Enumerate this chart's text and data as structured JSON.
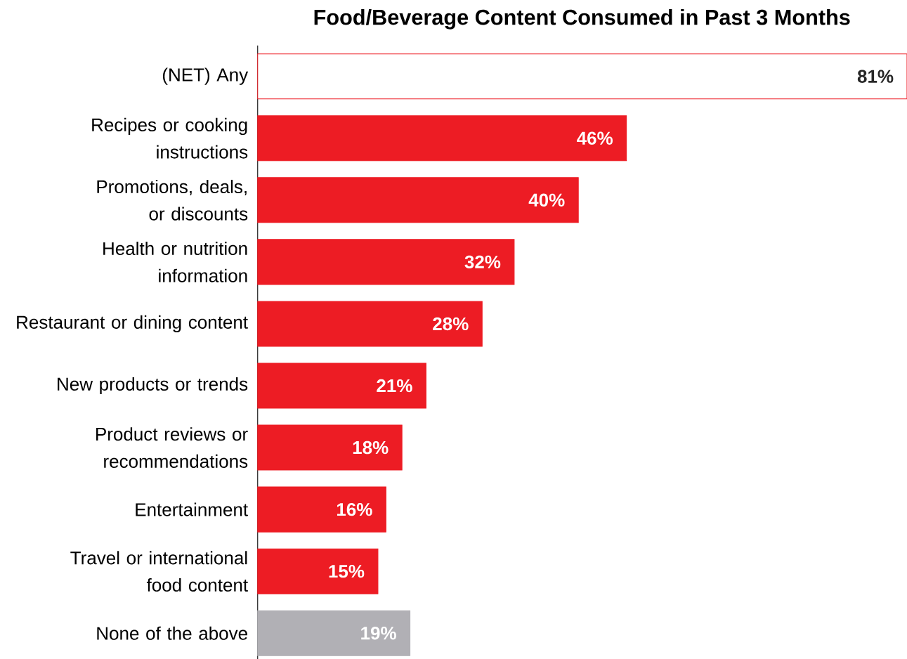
{
  "chart_data": {
    "type": "bar",
    "orientation": "horizontal",
    "title": "Food/Beverage Content Consumed in Past 3 Months",
    "categories": [
      "(NET) Any",
      "Recipes or cooking instructions",
      "Promotions, deals, or discounts",
      "Health or nutrition information",
      "Restaurant or dining content",
      "New products or trends",
      "Product reviews or recommendations",
      "Entertainment",
      "Travel or international food content",
      "None of the above"
    ],
    "values": [
      81,
      46,
      40,
      32,
      28,
      21,
      18,
      16,
      15,
      19
    ],
    "value_labels": [
      "81%",
      "46%",
      "40%",
      "32%",
      "28%",
      "21%",
      "18%",
      "16%",
      "15%",
      "19%"
    ],
    "colors": [
      "#ffffff",
      "#ed1c24",
      "#ed1c24",
      "#ed1c24",
      "#ed1c24",
      "#ed1c24",
      "#ed1c24",
      "#ed1c24",
      "#ed1c24",
      "#b1b0b5"
    ]
  }
}
